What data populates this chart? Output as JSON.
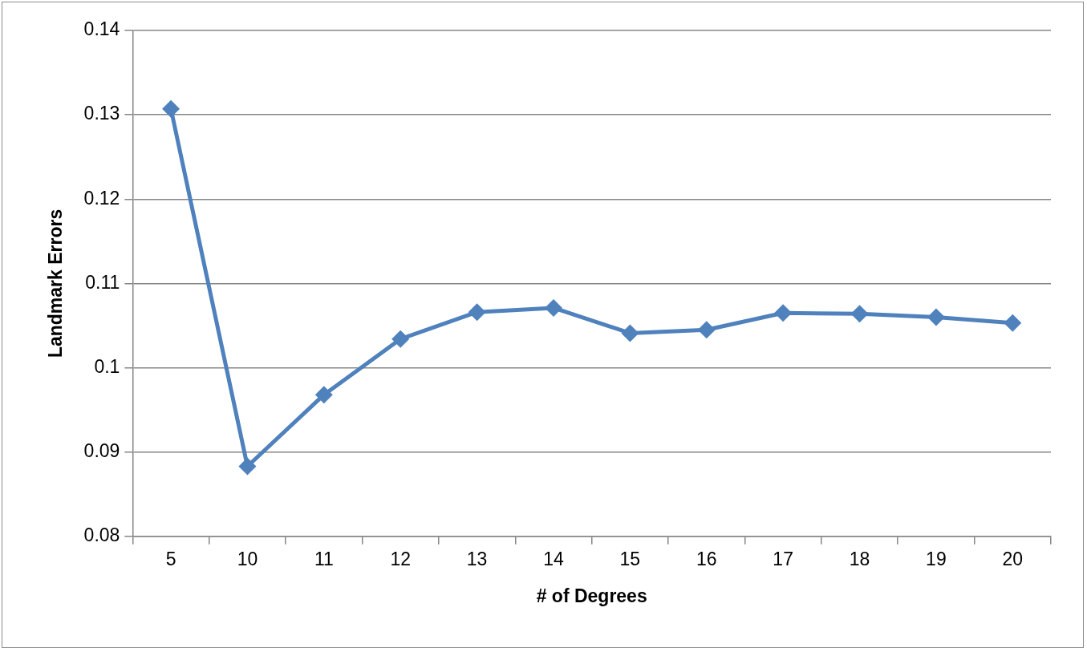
{
  "chart_data": {
    "type": "line",
    "xlabel": "# of Degrees",
    "ylabel": "Landmark Errors",
    "categories": [
      "5",
      "10",
      "11",
      "12",
      "13",
      "14",
      "15",
      "16",
      "17",
      "18",
      "19",
      "20"
    ],
    "series": [
      {
        "color": "#4f81bd",
        "values": [
          0.1307,
          0.0883,
          0.0968,
          0.1034,
          0.1066,
          0.1071,
          0.1041,
          0.1045,
          0.1065,
          0.1064,
          0.106,
          0.1053
        ]
      }
    ],
    "ylim": [
      0.08,
      0.14
    ],
    "yticks": [
      0.08,
      0.09,
      0.1,
      0.11,
      0.12,
      0.13,
      0.14
    ],
    "grid": "y",
    "legend": false,
    "marker": "diamond",
    "line_style": "solid"
  }
}
